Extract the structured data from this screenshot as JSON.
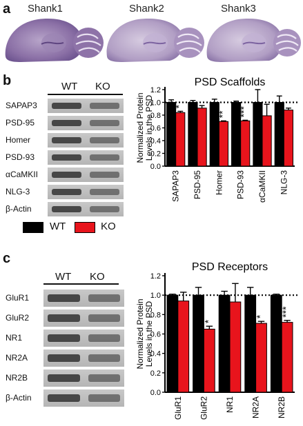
{
  "figure": {
    "panel_a": {
      "letter": "a",
      "sections": [
        "Shank1",
        "Shank2",
        "Shank3"
      ]
    },
    "panel_b": {
      "letter": "b",
      "col_wt": "WT",
      "col_ko": "KO",
      "blot_labels": [
        "SAPAP3",
        "PSD-95",
        "Homer",
        "PSD-93",
        "αCaMKII",
        "NLG-3",
        "β-Actin"
      ]
    },
    "panel_c": {
      "letter": "c",
      "col_wt": "WT",
      "col_ko": "KO",
      "blot_labels": [
        "GluR1",
        "GluR2",
        "NR1",
        "NR2A",
        "NR2B",
        "β-Actin"
      ]
    },
    "legend": {
      "wt": "WT",
      "ko": "KO",
      "wt_color": "#000000",
      "ko_color": "#e8141c"
    }
  },
  "chart_data": [
    {
      "type": "bar",
      "title": "PSD Scaffolds",
      "ylabel": "Normalized Protein Levels in the PSD",
      "ylim": [
        0,
        1.2
      ],
      "yticks": [
        "0.0",
        "0.2",
        "0.4",
        "0.6",
        "0.8",
        "1.0",
        "1.2"
      ],
      "categories": [
        "SAPAP3",
        "PSD-95",
        "Homer",
        "PSD-93",
        "αCaMKII",
        "NLG-3"
      ],
      "series": [
        {
          "name": "WT",
          "color": "#000000",
          "values": [
            1.0,
            1.0,
            1.0,
            1.0,
            1.0,
            1.0
          ],
          "errors": [
            0.04,
            0.03,
            0.05,
            0.02,
            0.2,
            0.1
          ]
        },
        {
          "name": "KO",
          "color": "#e8141c",
          "values": [
            0.84,
            0.91,
            0.7,
            0.71,
            0.79,
            0.88
          ],
          "errors": [
            0.02,
            0.04,
            0.01,
            0.01,
            0.18,
            0.03
          ]
        }
      ],
      "significance": [
        "*",
        "",
        "**",
        "***",
        "",
        ""
      ],
      "reference_line": 1.0
    },
    {
      "type": "bar",
      "title": "PSD Receptors",
      "ylabel": "Normalized Protein Levels in the PSD",
      "ylim": [
        0,
        1.2
      ],
      "yticks": [
        "0.0",
        "0.2",
        "0.4",
        "0.6",
        "0.8",
        "1.0",
        "1.2"
      ],
      "categories": [
        "GluR1",
        "GluR2",
        "NR1",
        "NR2A",
        "NR2B"
      ],
      "series": [
        {
          "name": "WT",
          "color": "#000000",
          "values": [
            1.0,
            1.0,
            1.0,
            1.0,
            1.0
          ],
          "errors": [
            0.01,
            0.08,
            0.04,
            0.08,
            0.01
          ]
        },
        {
          "name": "KO",
          "color": "#e8141c",
          "values": [
            0.94,
            0.65,
            0.93,
            0.71,
            0.72
          ],
          "errors": [
            0.09,
            0.03,
            0.19,
            0.02,
            0.02
          ]
        }
      ],
      "significance": [
        "",
        "*",
        "",
        "*",
        "***"
      ],
      "reference_line": 1.0
    }
  ]
}
